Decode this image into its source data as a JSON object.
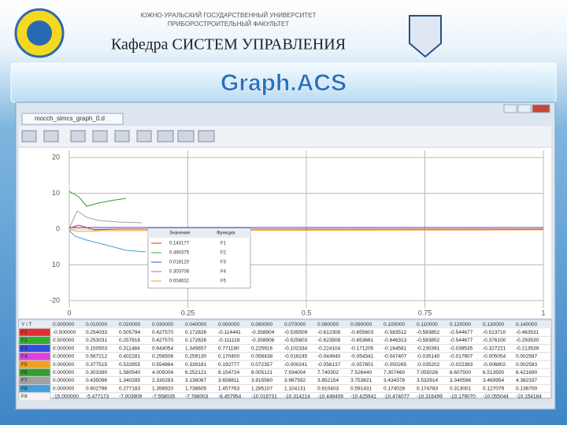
{
  "header": {
    "university": "ЮЖНО-УРАЛЬСКИЙ ГОСУДАРСТВЕННЫЙ УНИВЕРСИТЕТ",
    "faculty": "ПРИБОРОСТРОИТЕЛЬНЫЙ ФАКУЛЬТЕТ",
    "department": "Кафедра СИСТЕМ УПРАВЛЕНИЯ",
    "title": "Graph.ACS"
  },
  "window": {
    "tab": "mocch_simcs_graph_0.d"
  },
  "plot": {
    "ylim": [
      -22,
      22
    ],
    "yticks": [
      20,
      10,
      0,
      {
        "value": -10,
        "label": "10"
      },
      -20
    ],
    "xlim": [
      0,
      1
    ],
    "xticks": [
      0,
      0.25,
      0.5,
      0.75,
      1
    ],
    "legend": {
      "headers": [
        "Значение",
        "Функция"
      ],
      "rows": [
        [
          "0.143177",
          "F1"
        ],
        [
          "0.490375",
          "F2"
        ],
        [
          "0.018120",
          "F3"
        ],
        [
          "0.303706",
          "F4"
        ],
        [
          "0.004632",
          "F5"
        ]
      ]
    }
  },
  "table": {
    "corner": "Y \\ T",
    "columns": [
      "0.000000",
      "0.010000",
      "0.020000",
      "0.030000",
      "0.040000",
      "0.050000",
      "0.060000",
      "0.070000",
      "0.080000",
      "0.090000",
      "0.100000",
      "0.110000",
      "0.120000",
      "0.130000",
      "0.140000"
    ],
    "rows": [
      {
        "label": "F1",
        "color": "#e03030",
        "cells": [
          "-0.500000",
          "0.254033",
          "0.505794",
          "0.427570",
          "0.172826",
          "-0.114441",
          "-0.358904",
          "-0.535509",
          "-0.612308",
          "-0.655603",
          "-0.583512",
          "-0.583852",
          "-0.544677",
          "-0.513710",
          "-0.463531"
        ]
      },
      {
        "label": "F2",
        "color": "#30b030",
        "cells": [
          "0.500000",
          "0.253031",
          "0.257816",
          "0.427570",
          "0.172826",
          "-0.111119",
          "-0.358906",
          "-0.525603",
          "-0.623508",
          "-0.653661",
          "-0.646313",
          "-0.583852",
          "-0.544677",
          "-0.376100",
          "-0.293530"
        ]
      },
      {
        "label": "F3",
        "color": "#3050e0",
        "cells": [
          "0.000000",
          "0.150503",
          "0.311484",
          "0.644054",
          "1.345657",
          "0.771190",
          "0.225916",
          "-0.102334",
          "-0.224104",
          "-0.171205",
          "-0.164581",
          "-0.230391",
          "-0.039535",
          "-0.327221",
          "-0.213539"
        ]
      },
      {
        "label": "F4",
        "color": "#e040e0",
        "cells": [
          "0.000000",
          "0.567212",
          "0.402281",
          "0.256506",
          "0.259130",
          "0.170400",
          "0.056438",
          "-0.016245",
          "-0.044940",
          "-0.054341",
          "-0.047407",
          "-0.035140",
          "-0.017907",
          "-0.005054",
          "0.002587"
        ]
      },
      {
        "label": "F5",
        "color": "#f0a020",
        "cells": [
          "0.000000",
          "0.377515",
          "0.532855",
          "0.554864",
          "0.339181",
          "0.192777",
          "0.072357",
          "-0.000241",
          "-0.056137",
          "-0.057801",
          "-0.050265",
          "-0.035202",
          "-0.022383",
          "-0.006802",
          "0.002583"
        ]
      },
      {
        "label": "F6",
        "color": "#30a030",
        "cells": [
          "0.000000",
          "0.303390",
          "1.580540",
          "4.005004",
          "6.252121",
          "8.154724",
          "8.005121",
          "7.934004",
          "7.740302",
          "7.526440",
          "7.307460",
          "7.055026",
          "6.607500",
          "6.513500",
          "6.421690"
        ]
      },
      {
        "label": "F7",
        "color": "#a0a0a0",
        "cells": [
          "0.000000",
          "0.435096",
          "1.340285",
          "2.330283",
          "3.136067",
          "3.658811",
          "3.915560",
          "3.967592",
          "3.852154",
          "3.753821",
          "3.434378",
          "3.532914",
          "3.340596",
          "3.469954",
          "4.382337"
        ]
      },
      {
        "label": "F8",
        "color": "#40a0e0",
        "cells": [
          "0.000000",
          "0.602796",
          "0.277183",
          "1.356920",
          "1.738605",
          "1.457763",
          "1.285107",
          "1.104131",
          "0.910403",
          "0.591431",
          "0.174028",
          "0.174783",
          "0.313001",
          "0.127079",
          "0.136700"
        ]
      },
      {
        "label": "F9",
        "color": "#f4f4f4",
        "cells": [
          "-15.000000",
          "-5.477173",
          "-7.003909",
          "-7.558035",
          "-7.786003",
          "-8.457954",
          "-10.016731",
          "-10.314214",
          "-10.449409",
          "-10.425941",
          "-10.474077",
          "-10.316499",
          "-10.179070",
          "-10.055044",
          "-10.154184"
        ]
      }
    ]
  }
}
